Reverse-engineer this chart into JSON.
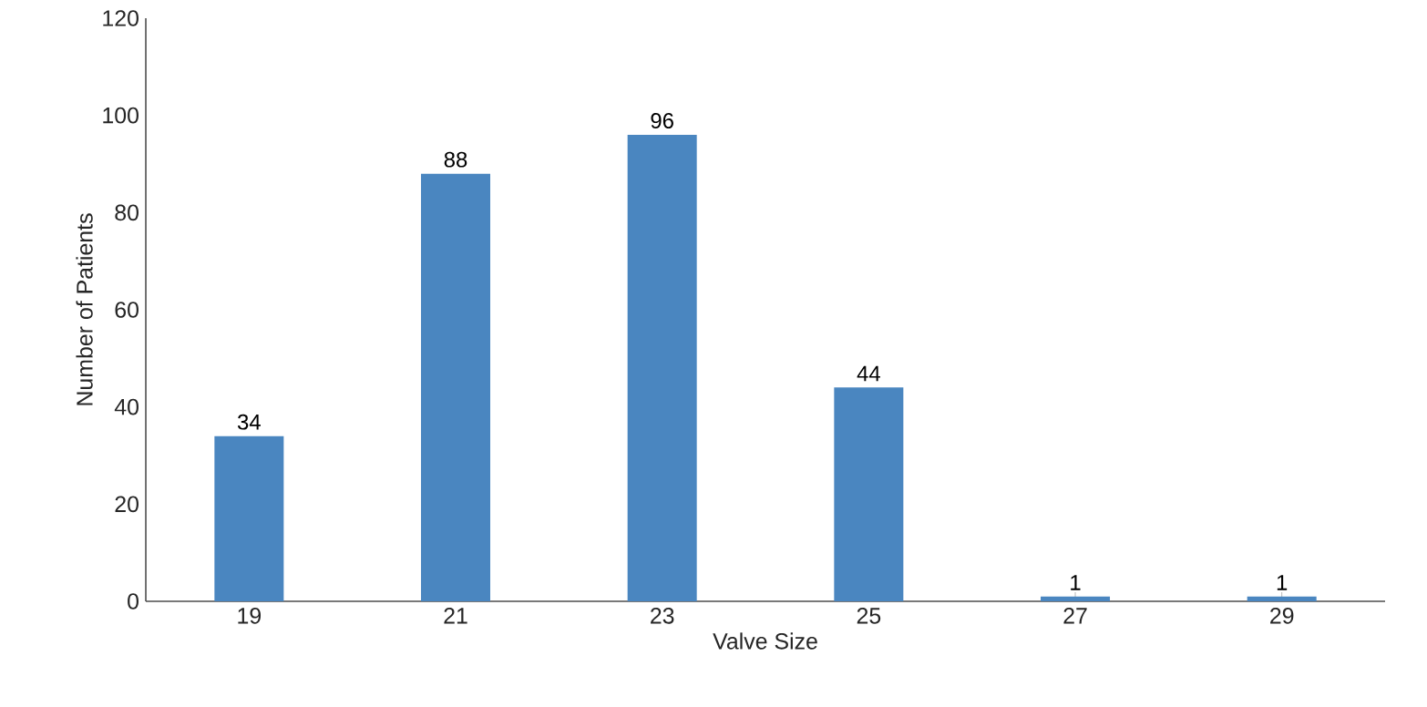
{
  "chart_data": {
    "type": "bar",
    "xlabel": "Valve Size",
    "ylabel": "Number of Patients",
    "categories": [
      "19",
      "21",
      "23",
      "25",
      "27",
      "29"
    ],
    "values": [
      34,
      88,
      96,
      44,
      1,
      1
    ],
    "color": "#4a86c0",
    "ylim": [
      0,
      120
    ],
    "yticks": [
      0,
      20,
      40,
      60,
      80,
      100,
      120
    ],
    "grid": false,
    "data_labels": true
  }
}
